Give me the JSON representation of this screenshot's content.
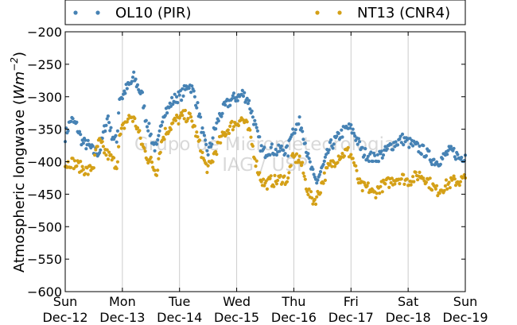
{
  "chart_data": {
    "type": "scatter",
    "title": "",
    "xlabel": "",
    "ylabel": "Atmospheric longwave (Wm⁻²)",
    "ylabel_parts": {
      "text": "Atmospheric longwave (",
      "unit_base": "Wm",
      "unit_exp": "−2",
      "close": ")"
    },
    "ylim": [
      -600,
      -200
    ],
    "xlim": [
      "2015-12-12 00:00",
      "2015-12-19 00:00"
    ],
    "yticks": [
      -200,
      -250,
      -300,
      -350,
      -400,
      -450,
      -500,
      -550,
      -600
    ],
    "ytick_labels": [
      "−200",
      "−250",
      "−300",
      "−350",
      "−400",
      "−450",
      "−500",
      "−550",
      "−600"
    ],
    "xticks": [
      {
        "day": "Sun",
        "date": "Dec-12"
      },
      {
        "day": "Mon",
        "date": "Dec-13"
      },
      {
        "day": "Tue",
        "date": "Dec-14"
      },
      {
        "day": "Wed",
        "date": "Dec-15"
      },
      {
        "day": "Thu",
        "date": "Dec-16"
      },
      {
        "day": "Fri",
        "date": "Dec-17"
      },
      {
        "day": "Sat",
        "date": "Dec-18"
      },
      {
        "day": "Sun",
        "date": "Dec-19"
      }
    ],
    "grid": "vertical",
    "legend": "top, outside plot",
    "watermark": [
      "Grupo de Micrometeorologia",
      "IAG / USP"
    ],
    "series": [
      {
        "name": "OL10 (PIR)",
        "color": "#4682b4",
        "points": [
          [
            0.0,
            -360
          ],
          [
            0.1,
            -335
          ],
          [
            0.2,
            -345
          ],
          [
            0.3,
            -370
          ],
          [
            0.4,
            -375
          ],
          [
            0.5,
            -385
          ],
          [
            0.6,
            -385
          ],
          [
            0.7,
            -345
          ],
          [
            0.75,
            -330
          ],
          [
            0.8,
            -355
          ],
          [
            0.9,
            -370
          ],
          [
            0.95,
            -300
          ],
          [
            1.0,
            -300
          ],
          [
            1.05,
            -290
          ],
          [
            1.1,
            -285
          ],
          [
            1.15,
            -280
          ],
          [
            1.2,
            -270
          ],
          [
            1.25,
            -280
          ],
          [
            1.3,
            -290
          ],
          [
            1.35,
            -300
          ],
          [
            1.4,
            -330
          ],
          [
            1.45,
            -345
          ],
          [
            1.5,
            -360
          ],
          [
            1.55,
            -375
          ],
          [
            1.6,
            -380
          ],
          [
            1.65,
            -360
          ],
          [
            1.7,
            -330
          ],
          [
            1.75,
            -320
          ],
          [
            1.8,
            -320
          ],
          [
            1.85,
            -310
          ],
          [
            1.9,
            -305
          ],
          [
            1.95,
            -300
          ],
          [
            2.0,
            -300
          ],
          [
            2.05,
            -295
          ],
          [
            2.1,
            -290
          ],
          [
            2.15,
            -280
          ],
          [
            2.2,
            -285
          ],
          [
            2.25,
            -295
          ],
          [
            2.3,
            -310
          ],
          [
            2.35,
            -330
          ],
          [
            2.4,
            -355
          ],
          [
            2.45,
            -375
          ],
          [
            2.5,
            -385
          ],
          [
            2.55,
            -375
          ],
          [
            2.6,
            -355
          ],
          [
            2.7,
            -330
          ],
          [
            2.8,
            -315
          ],
          [
            2.9,
            -305
          ],
          [
            3.0,
            -300
          ],
          [
            3.05,
            -300
          ],
          [
            3.1,
            -295
          ],
          [
            3.15,
            -300
          ],
          [
            3.2,
            -305
          ],
          [
            3.25,
            -320
          ],
          [
            3.3,
            -335
          ],
          [
            3.35,
            -355
          ],
          [
            3.4,
            -370
          ],
          [
            3.45,
            -385
          ],
          [
            3.5,
            -385
          ],
          [
            3.6,
            -380
          ],
          [
            3.7,
            -385
          ],
          [
            3.8,
            -380
          ],
          [
            3.9,
            -385
          ],
          [
            3.95,
            -355
          ],
          [
            4.0,
            -350
          ],
          [
            4.05,
            -345
          ],
          [
            4.1,
            -340
          ],
          [
            4.15,
            -350
          ],
          [
            4.2,
            -370
          ],
          [
            4.25,
            -395
          ],
          [
            4.3,
            -410
          ],
          [
            4.35,
            -425
          ],
          [
            4.4,
            -430
          ],
          [
            4.45,
            -420
          ],
          [
            4.5,
            -410
          ],
          [
            4.55,
            -400
          ],
          [
            4.6,
            -385
          ],
          [
            4.65,
            -375
          ],
          [
            4.7,
            -370
          ],
          [
            4.75,
            -365
          ],
          [
            4.8,
            -360
          ],
          [
            4.85,
            -355
          ],
          [
            4.9,
            -350
          ],
          [
            4.95,
            -348
          ],
          [
            5.0,
            -350
          ],
          [
            5.05,
            -355
          ],
          [
            5.1,
            -365
          ],
          [
            5.15,
            -375
          ],
          [
            5.2,
            -385
          ],
          [
            5.3,
            -390
          ],
          [
            5.4,
            -395
          ],
          [
            5.5,
            -390
          ],
          [
            5.6,
            -385
          ],
          [
            5.7,
            -375
          ],
          [
            5.8,
            -370
          ],
          [
            5.9,
            -365
          ],
          [
            6.0,
            -370
          ],
          [
            6.1,
            -375
          ],
          [
            6.2,
            -380
          ],
          [
            6.3,
            -385
          ],
          [
            6.4,
            -395
          ],
          [
            6.5,
            -400
          ],
          [
            6.6,
            -395
          ],
          [
            6.7,
            -385
          ],
          [
            6.8,
            -385
          ],
          [
            6.9,
            -395
          ],
          [
            7.0,
            -390
          ]
        ]
      },
      {
        "name": "NT13 (CNR4)",
        "color": "#d4a017",
        "points": [
          [
            0.0,
            -405
          ],
          [
            0.1,
            -400
          ],
          [
            0.2,
            -405
          ],
          [
            0.3,
            -410
          ],
          [
            0.4,
            -415
          ],
          [
            0.5,
            -405
          ],
          [
            0.55,
            -380
          ],
          [
            0.6,
            -370
          ],
          [
            0.7,
            -385
          ],
          [
            0.8,
            -395
          ],
          [
            0.9,
            -405
          ],
          [
            0.95,
            -365
          ],
          [
            1.0,
            -350
          ],
          [
            1.05,
            -340
          ],
          [
            1.1,
            -335
          ],
          [
            1.15,
            -330
          ],
          [
            1.2,
            -335
          ],
          [
            1.25,
            -345
          ],
          [
            1.3,
            -360
          ],
          [
            1.35,
            -375
          ],
          [
            1.4,
            -385
          ],
          [
            1.45,
            -395
          ],
          [
            1.5,
            -400
          ],
          [
            1.55,
            -410
          ],
          [
            1.6,
            -415
          ],
          [
            1.65,
            -385
          ],
          [
            1.7,
            -365
          ],
          [
            1.75,
            -355
          ],
          [
            1.8,
            -350
          ],
          [
            1.85,
            -345
          ],
          [
            1.9,
            -340
          ],
          [
            1.95,
            -335
          ],
          [
            2.0,
            -335
          ],
          [
            2.05,
            -330
          ],
          [
            2.1,
            -330
          ],
          [
            2.15,
            -330
          ],
          [
            2.2,
            -335
          ],
          [
            2.25,
            -345
          ],
          [
            2.3,
            -360
          ],
          [
            2.35,
            -375
          ],
          [
            2.4,
            -390
          ],
          [
            2.45,
            -405
          ],
          [
            2.5,
            -410
          ],
          [
            2.55,
            -405
          ],
          [
            2.6,
            -390
          ],
          [
            2.7,
            -370
          ],
          [
            2.8,
            -355
          ],
          [
            2.9,
            -345
          ],
          [
            3.0,
            -340
          ],
          [
            3.05,
            -335
          ],
          [
            3.1,
            -335
          ],
          [
            3.15,
            -340
          ],
          [
            3.2,
            -350
          ],
          [
            3.25,
            -365
          ],
          [
            3.3,
            -385
          ],
          [
            3.35,
            -405
          ],
          [
            3.4,
            -420
          ],
          [
            3.45,
            -430
          ],
          [
            3.5,
            -435
          ],
          [
            3.6,
            -430
          ],
          [
            3.7,
            -430
          ],
          [
            3.8,
            -425
          ],
          [
            3.9,
            -430
          ],
          [
            3.95,
            -400
          ],
          [
            4.0,
            -395
          ],
          [
            4.05,
            -395
          ],
          [
            4.1,
            -395
          ],
          [
            4.15,
            -410
          ],
          [
            4.2,
            -430
          ],
          [
            4.25,
            -445
          ],
          [
            4.3,
            -455
          ],
          [
            4.35,
            -460
          ],
          [
            4.4,
            -455
          ],
          [
            4.45,
            -445
          ],
          [
            4.5,
            -430
          ],
          [
            4.55,
            -420
          ],
          [
            4.6,
            -410
          ],
          [
            4.65,
            -405
          ],
          [
            4.7,
            -400
          ],
          [
            4.75,
            -395
          ],
          [
            4.8,
            -390
          ],
          [
            4.85,
            -390
          ],
          [
            4.9,
            -385
          ],
          [
            4.95,
            -385
          ],
          [
            5.0,
            -390
          ],
          [
            5.05,
            -400
          ],
          [
            5.1,
            -420
          ],
          [
            5.15,
            -435
          ],
          [
            5.2,
            -440
          ],
          [
            5.3,
            -440
          ],
          [
            5.4,
            -450
          ],
          [
            5.5,
            -440
          ],
          [
            5.6,
            -435
          ],
          [
            5.7,
            -430
          ],
          [
            5.8,
            -425
          ],
          [
            5.9,
            -425
          ],
          [
            6.0,
            -430
          ],
          [
            6.1,
            -425
          ],
          [
            6.2,
            -420
          ],
          [
            6.3,
            -425
          ],
          [
            6.4,
            -435
          ],
          [
            6.5,
            -445
          ],
          [
            6.6,
            -440
          ],
          [
            6.7,
            -435
          ],
          [
            6.8,
            -430
          ],
          [
            6.9,
            -430
          ],
          [
            7.0,
            -425
          ]
        ]
      }
    ]
  }
}
